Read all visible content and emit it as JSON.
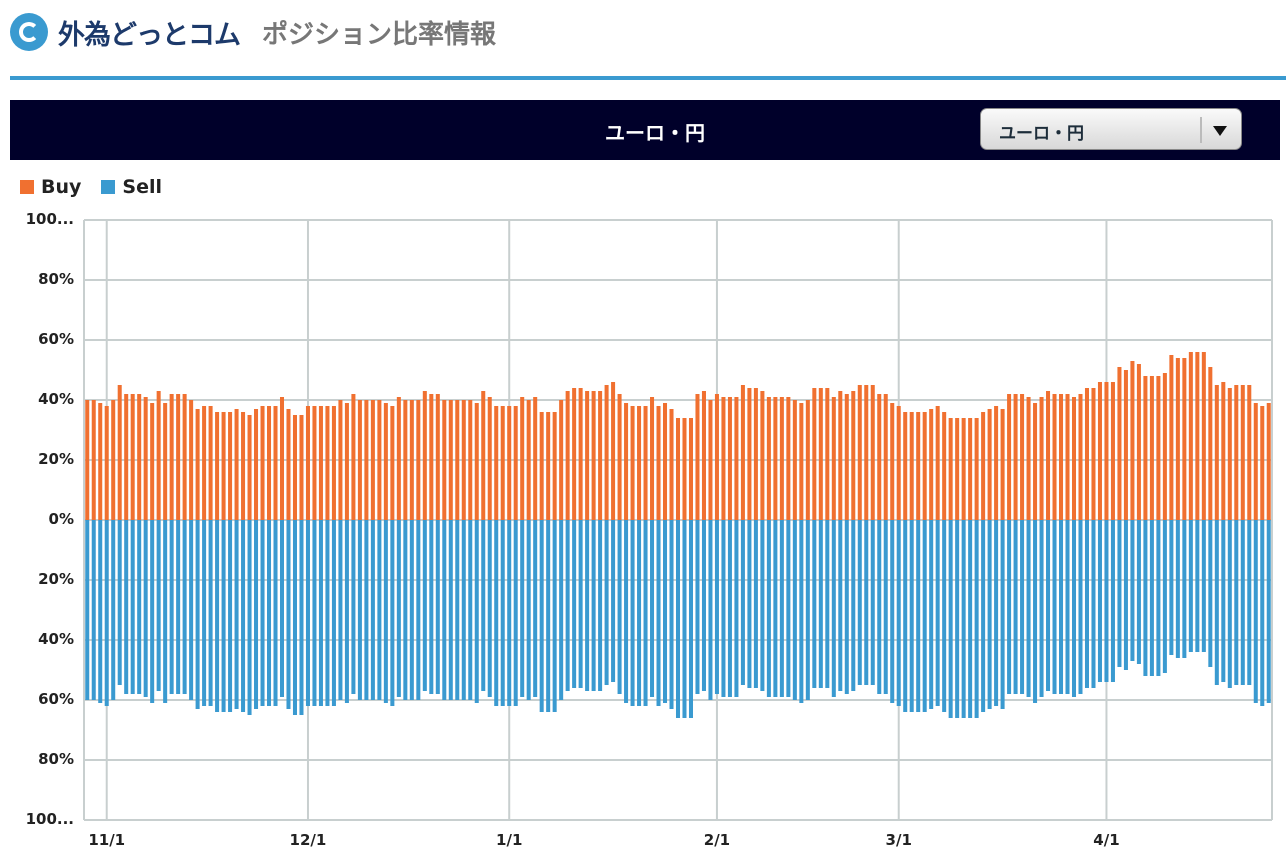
{
  "header": {
    "brand": "外為どっとコム",
    "subtitle": "ポジション比率情報",
    "logo_icon": "gaitame-c-logo"
  },
  "panel": {
    "title": "ユーロ・円",
    "currency_select": {
      "selected": "ユーロ・円"
    }
  },
  "colors": {
    "buy": "#f07030",
    "sell": "#3a9ad0",
    "header_bg": "#00002a",
    "accent": "#3a9ad0"
  },
  "chart_data": {
    "type": "bar",
    "title": "ユーロ・円",
    "legend": [
      {
        "name": "Buy"
      },
      {
        "name": "Sell"
      }
    ],
    "legend_position": "top-left",
    "ylabel": "",
    "xlabel": "",
    "ylim": [
      -100,
      100
    ],
    "y_ticks": [
      "100...",
      "80%",
      "60%",
      "40%",
      "20%",
      "0%",
      "20%",
      "40%",
      "60%",
      "80%",
      "100..."
    ],
    "x_ticks": [
      {
        "label": "11/1",
        "index": 3
      },
      {
        "label": "12/1",
        "index": 34
      },
      {
        "label": "1/1",
        "index": 65
      },
      {
        "label": "2/1",
        "index": 97
      },
      {
        "label": "3/1",
        "index": 125
      },
      {
        "label": "4/1",
        "index": 157
      }
    ],
    "grid": true,
    "buy_values": [
      40,
      40,
      39,
      38,
      40,
      45,
      42,
      42,
      42,
      41,
      39,
      43,
      39,
      42,
      42,
      42,
      40,
      37,
      38,
      38,
      36,
      36,
      36,
      37,
      36,
      35,
      37,
      38,
      38,
      38,
      41,
      37,
      35,
      35,
      38,
      38,
      38,
      38,
      38,
      40,
      39,
      42,
      40,
      40,
      40,
      40,
      39,
      38,
      41,
      40,
      40,
      40,
      43,
      42,
      42,
      40,
      40,
      40,
      40,
      40,
      39,
      43,
      41,
      38,
      38,
      38,
      38,
      41,
      40,
      41,
      36,
      36,
      36,
      40,
      43,
      44,
      44,
      43,
      43,
      43,
      45,
      46,
      42,
      39,
      38,
      38,
      38,
      41,
      38,
      39,
      37,
      34,
      34,
      34,
      42,
      43,
      40,
      42,
      41,
      41,
      41,
      45,
      44,
      44,
      43,
      41,
      41,
      41,
      41,
      40,
      39,
      40,
      44,
      44,
      44,
      41,
      43,
      42,
      43,
      45,
      45,
      45,
      42,
      42,
      39,
      38,
      36,
      36,
      36,
      36,
      37,
      38,
      36,
      34,
      34,
      34,
      34,
      34,
      36,
      37,
      38,
      37,
      42,
      42,
      42,
      41,
      39,
      41,
      43,
      42,
      42,
      42,
      41,
      42,
      44,
      44,
      46,
      46,
      46,
      51,
      50,
      53,
      52,
      48,
      48,
      48,
      49,
      55,
      54,
      54,
      56,
      56,
      56,
      51,
      45,
      46,
      44,
      45,
      45,
      45,
      39,
      38,
      39
    ],
    "sell_rule": "Sell = 100 - Buy"
  }
}
